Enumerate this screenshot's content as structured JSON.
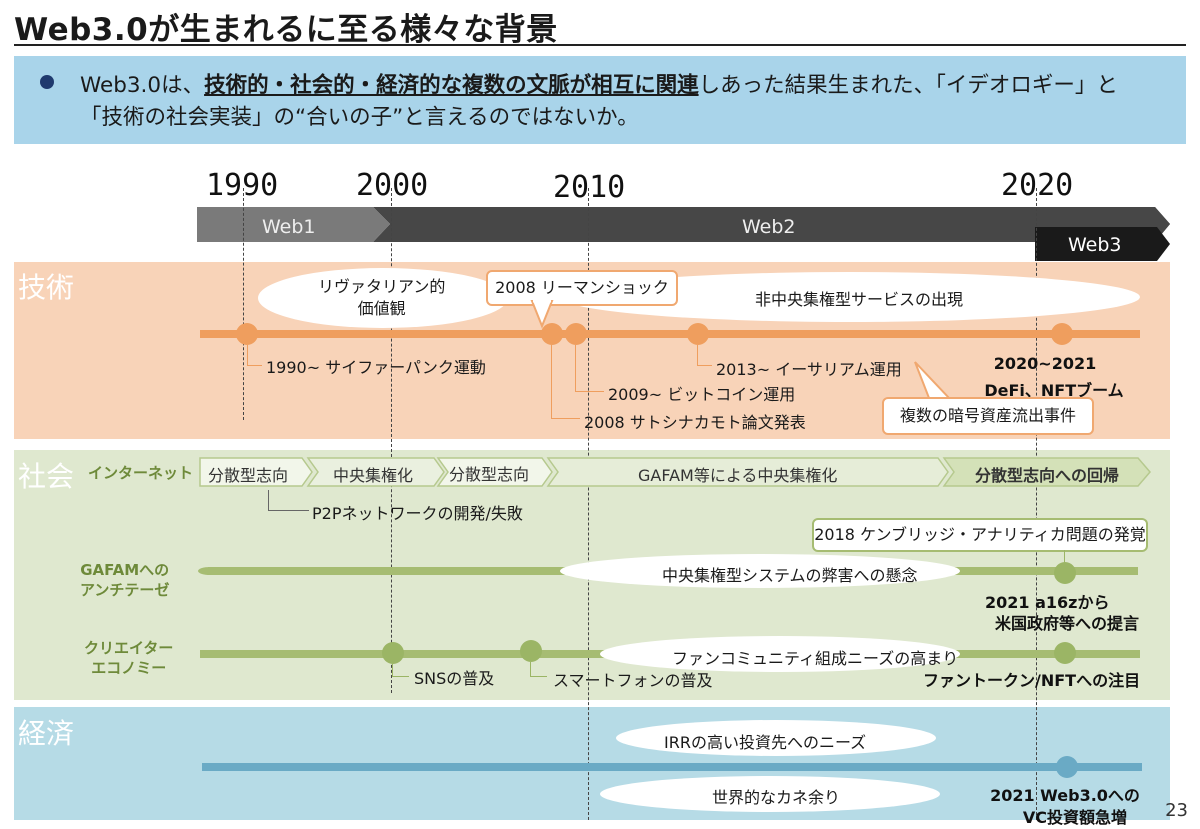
{
  "title": "Web3.0が生まれるに至る様々な背景",
  "summary": {
    "line1_a": "Web3.0は、",
    "line1_b": "技術的・社会的・経済的な複数の文脈が相互に関連",
    "line1_c": "しあった結果生まれた、「イデオロギー」と",
    "line2": "「技術の社会実装」の“合いの子”と言えるのではないか。"
  },
  "years": [
    "1990",
    "2000",
    "2010",
    "2020"
  ],
  "eras": {
    "web1": "Web1",
    "web2": "Web2",
    "web3": "Web3"
  },
  "tech": {
    "label": "技術",
    "libertarian": "リヴァタリアン的\n価値観",
    "lehman": "2008 リーマンショック",
    "decentralized_services": "非中央集権型サービスの出現",
    "cypherpunk": "1990~ サイファーパンク運動",
    "ethereum": "2013~ イーサリアム運用",
    "bitcoin": "2009~ ビットコイン運用",
    "satoshi": "2008 サトシナカモト論文発表",
    "defi_year": "2020~2021",
    "defi": "DeFi、NFTブーム",
    "hacks": "複数の暗号資産流出事件"
  },
  "society": {
    "label": "社会",
    "internet": "インターネット",
    "phases": [
      "分散型志向",
      "中央集権化",
      "分散型志向",
      "GAFAM等による中央集権化",
      "分散型志向への回帰"
    ],
    "p2p": "P2Pネットワークの開発/失敗",
    "cambridge": "2018 ケンブリッジ・アナリティカ問題の発覚",
    "anti_gafam": "GAFAMへの\nアンチテーゼ",
    "centralized_concern": "中央集権型システムの弊害への懸念",
    "a16z_1": "2021 a16zから",
    "a16z_2": "米国政府等への提言",
    "creator": "クリエイター\nエコノミー",
    "fan_community": "ファンコミュニティ組成ニーズの高まり",
    "sns": "SNSの普及",
    "smartphone": "スマートフォンの普及",
    "fan_token": "ファントークン/NFTへの注目"
  },
  "economy": {
    "label": "経済",
    "irr": "IRRの高い投資先へのニーズ",
    "money_glut": "世界的なカネ余り",
    "vc_1": "2021 Web3.0への",
    "vc_2": "VC投資額急増"
  },
  "page_number": "23",
  "colors": {
    "tech_band": "#f8d3b8",
    "society_band": "#dfe8cf",
    "economy_band": "#b6dbe6",
    "tech_line": "#ef9e5e",
    "society_line": "#a6bc72",
    "economy_line": "#6aaac5",
    "summary_bg": "#a9d4ea"
  }
}
